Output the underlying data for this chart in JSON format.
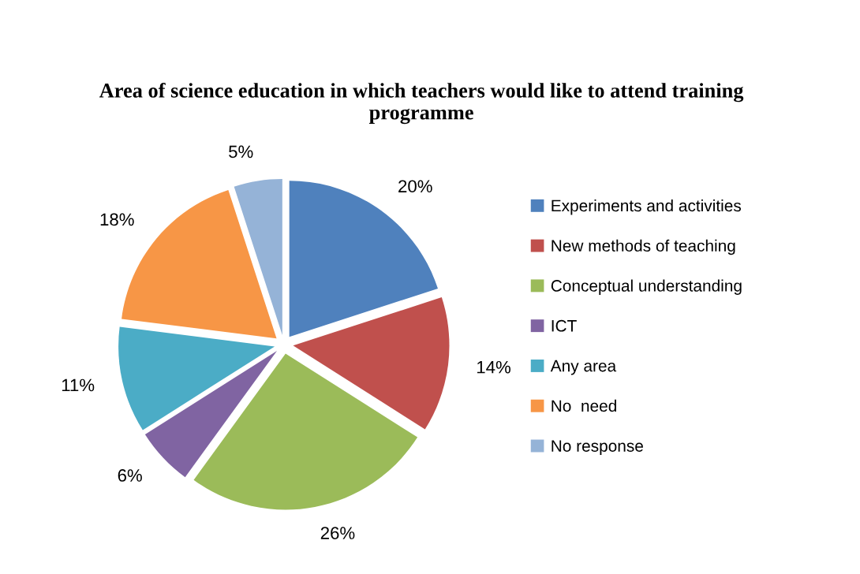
{
  "chart_data": {
    "type": "pie",
    "title": "Area of science education in which teachers would like to attend training programme",
    "categories": [
      "Experiments and activities",
      "New methods of teaching",
      "Conceptual understanding",
      "ICT",
      "Any area",
      "No  need",
      "No response"
    ],
    "values": [
      20,
      14,
      26,
      6,
      11,
      18,
      5
    ],
    "colors": [
      "#4f81bd",
      "#c0504d",
      "#9bbb59",
      "#8064a2",
      "#4bacc6",
      "#f79646",
      "#95b3d7"
    ],
    "value_labels": [
      "20%",
      "14%",
      "26%",
      "6%",
      "11%",
      "18%",
      "5%"
    ],
    "legend": "right"
  }
}
